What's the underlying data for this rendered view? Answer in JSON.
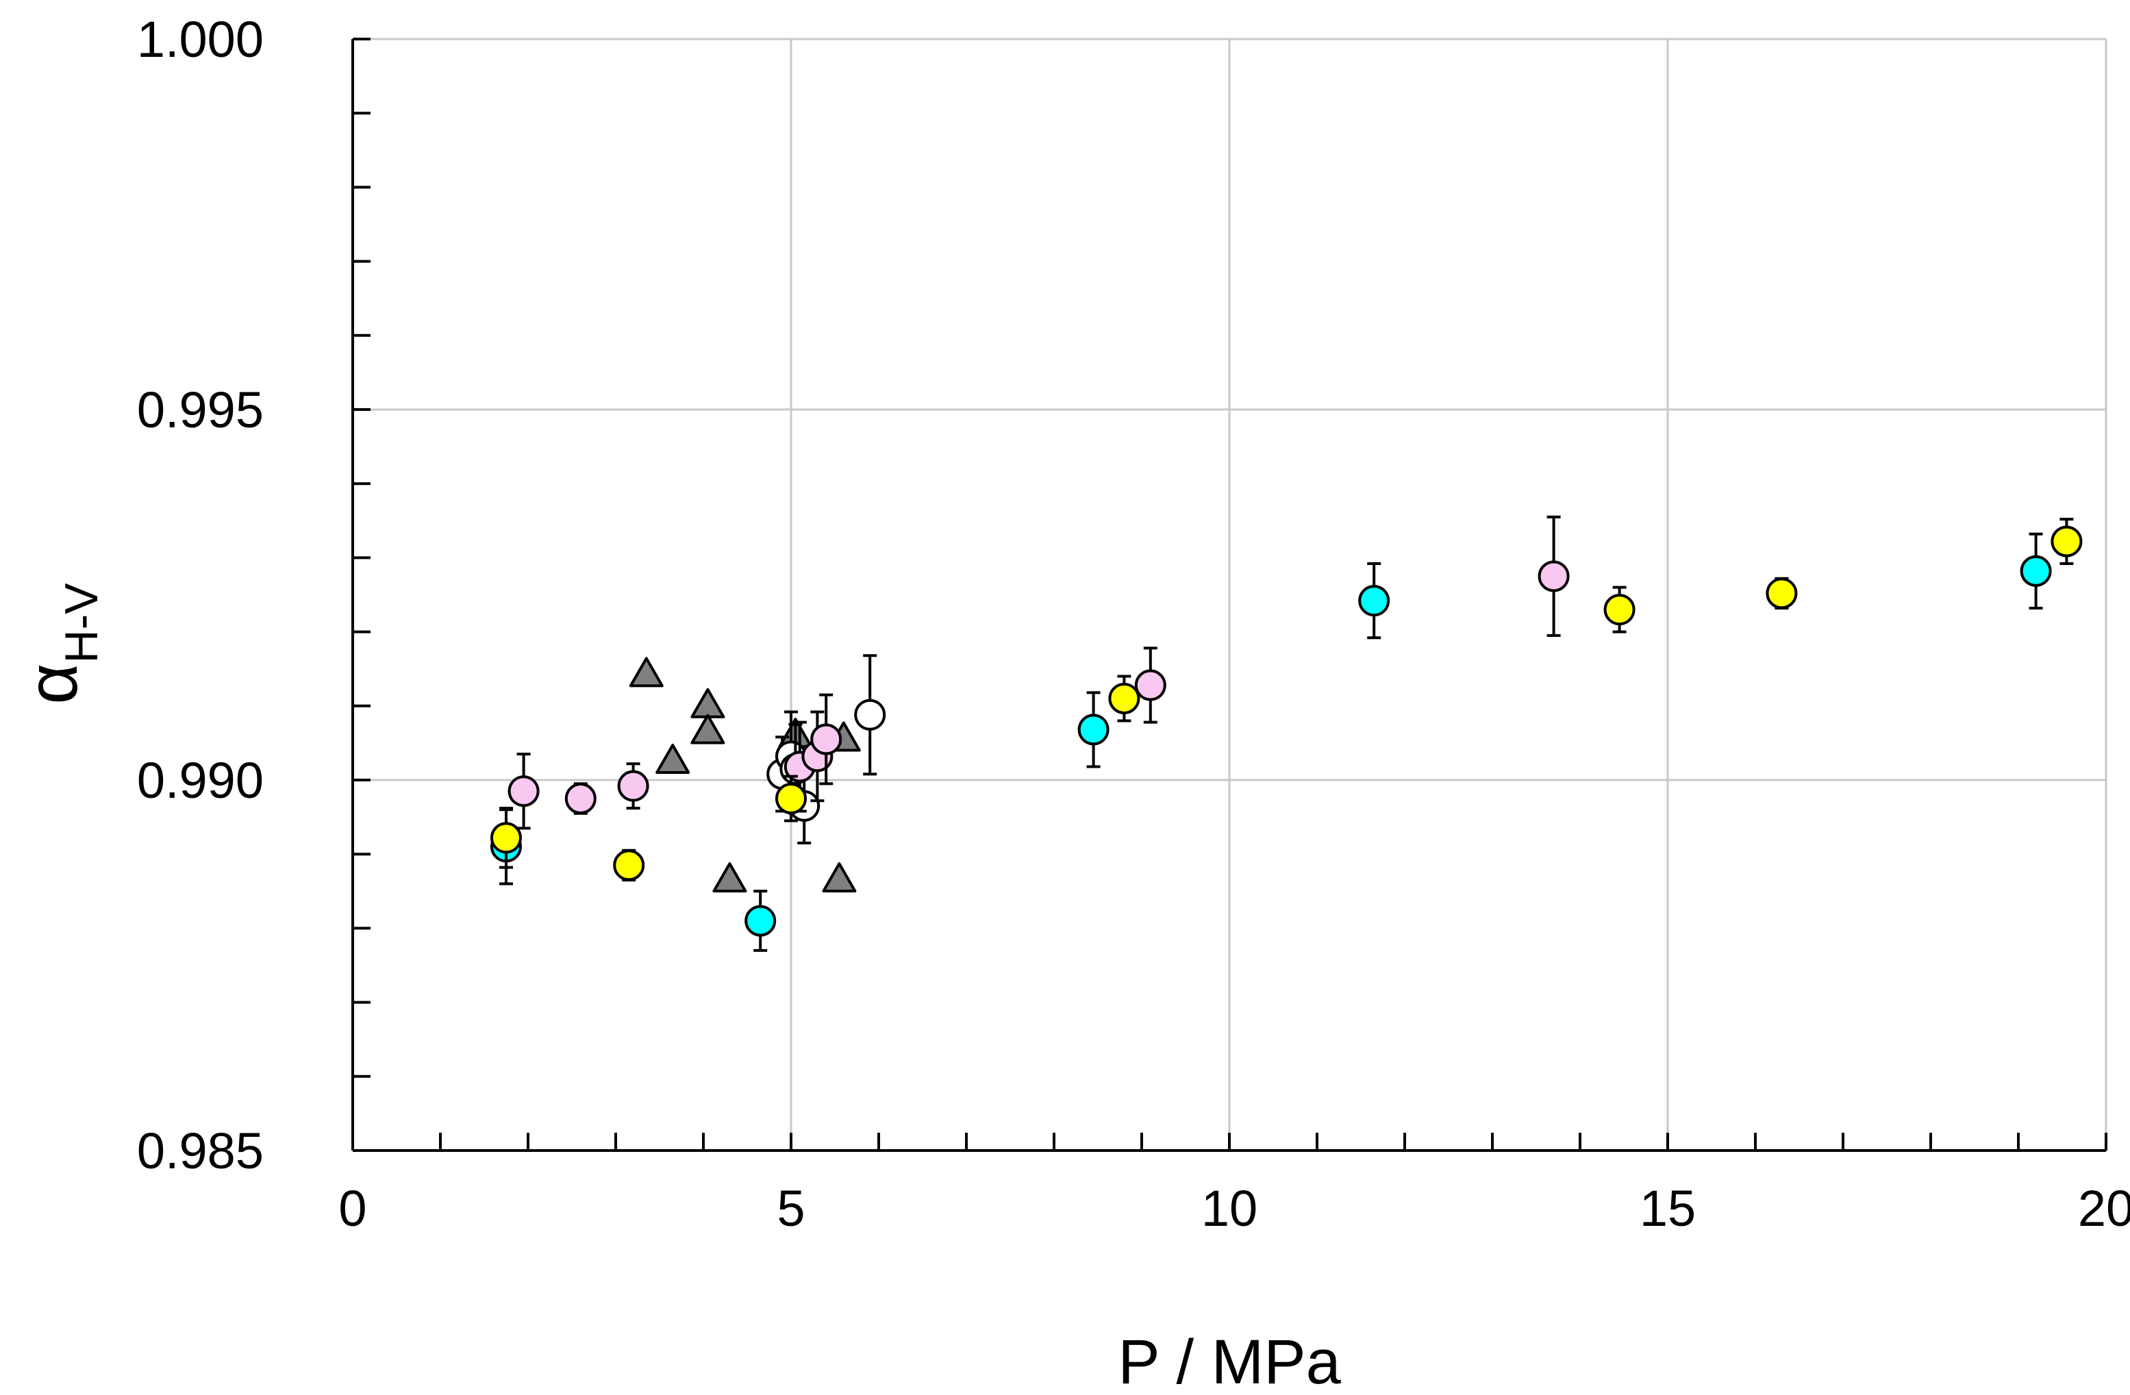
{
  "chart_data": {
    "type": "scatter",
    "title": "",
    "xlabel": "P / MPa",
    "ylabel_main": "α",
    "ylabel_sub": "H-V",
    "xlim": [
      0,
      20
    ],
    "ylim": [
      0.985,
      1.0
    ],
    "x_major_ticks": [
      0,
      5,
      10,
      15,
      20
    ],
    "x_tick_labels": [
      "0",
      "5",
      "10",
      "15",
      "20"
    ],
    "x_minor_step": 1,
    "y_major_ticks": [
      0.985,
      0.99,
      0.995,
      1.0
    ],
    "y_tick_labels": [
      "0.985",
      "0.990",
      "0.995",
      "1.000"
    ],
    "y_minor_step": 0.001,
    "grid": true,
    "colors": {
      "grid": "#c8c8c8",
      "axis": "#000000"
    },
    "series": [
      {
        "name": "triangles",
        "marker": "triangle",
        "color": "#7f7f7f",
        "points": [
          {
            "x": 3.35,
            "y": 0.99142
          },
          {
            "x": 3.65,
            "y": 0.99025
          },
          {
            "x": 4.05,
            "y": 0.991
          },
          {
            "x": 4.05,
            "y": 0.99065
          },
          {
            "x": 4.3,
            "y": 0.98865
          },
          {
            "x": 5.05,
            "y": 0.9906
          },
          {
            "x": 5.55,
            "y": 0.98865
          },
          {
            "x": 5.6,
            "y": 0.99055
          }
        ]
      },
      {
        "name": "open circles",
        "marker": "circle",
        "color": "#ffffff",
        "points": [
          {
            "x": 4.9,
            "y": 0.99008,
            "err": 0.0005
          },
          {
            "x": 5.0,
            "y": 0.99032,
            "err": 0.0006
          },
          {
            "x": 5.05,
            "y": 0.99015,
            "err": 0.0006
          },
          {
            "x": 5.15,
            "y": 0.98965,
            "err": 0.0005
          },
          {
            "x": 5.9,
            "y": 0.99088,
            "err": 0.0008
          }
        ]
      },
      {
        "name": "pink circles",
        "marker": "circle",
        "color": "#f8c8f0",
        "points": [
          {
            "x": 1.95,
            "y": 0.98985,
            "err": 0.0005
          },
          {
            "x": 2.6,
            "y": 0.98975,
            "err": 0.0002
          },
          {
            "x": 3.2,
            "y": 0.98992,
            "err": 0.0003
          },
          {
            "x": 5.1,
            "y": 0.99018,
            "err": 0.0006
          },
          {
            "x": 5.3,
            "y": 0.99032,
            "err": 0.0006
          },
          {
            "x": 5.4,
            "y": 0.99055,
            "err": 0.0006
          },
          {
            "x": 9.1,
            "y": 0.99128,
            "err": 0.0005
          },
          {
            "x": 13.7,
            "y": 0.99275,
            "err": 0.0008
          }
        ]
      },
      {
        "name": "cyan circles",
        "marker": "circle",
        "color": "#00ffff",
        "points": [
          {
            "x": 1.75,
            "y": 0.9891,
            "err": 0.0005
          },
          {
            "x": 4.65,
            "y": 0.9881,
            "err": 0.0004
          },
          {
            "x": 8.45,
            "y": 0.99068,
            "err": 0.0005
          },
          {
            "x": 11.65,
            "y": 0.99242,
            "err": 0.0005
          },
          {
            "x": 19.2,
            "y": 0.99282,
            "err": 0.0005
          }
        ]
      },
      {
        "name": "yellow circles",
        "marker": "circle",
        "color": "#ffff00",
        "points": [
          {
            "x": 1.75,
            "y": 0.98922,
            "err": 0.0004
          },
          {
            "x": 3.15,
            "y": 0.98885,
            "err": 0.0002
          },
          {
            "x": 5.0,
            "y": 0.98975,
            "err": 0.0003
          },
          {
            "x": 8.8,
            "y": 0.9911,
            "err": 0.0003
          },
          {
            "x": 14.45,
            "y": 0.9923,
            "err": 0.0003
          },
          {
            "x": 16.3,
            "y": 0.99252,
            "err": 0.0002
          },
          {
            "x": 19.55,
            "y": 0.99322,
            "err": 0.0003
          }
        ]
      }
    ]
  }
}
